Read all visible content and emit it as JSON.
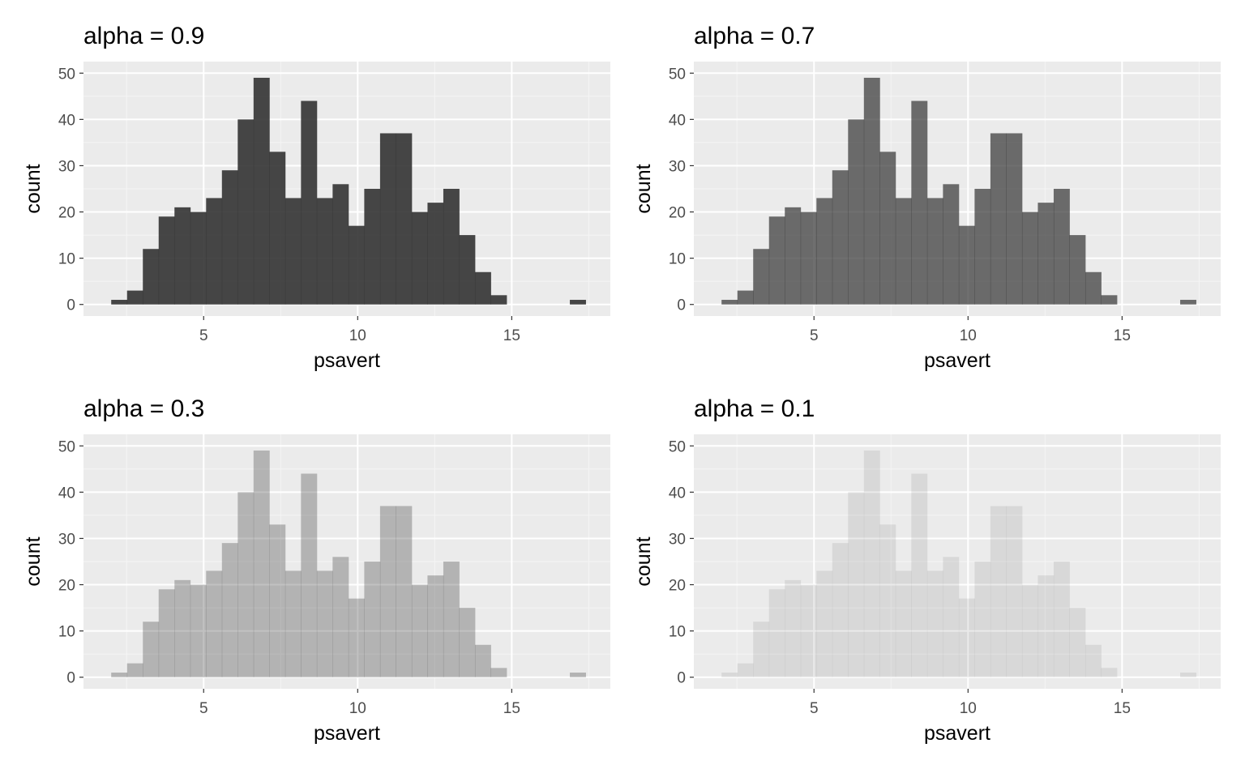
{
  "chart_data": [
    {
      "type": "bar",
      "title": "alpha = 0.9",
      "alpha": 0.9,
      "fill": "#333333",
      "xlabel": "psavert",
      "ylabel": "count",
      "xlim": [
        1.1,
        18.2
      ],
      "ylim": [
        -2.5,
        52.5
      ],
      "xticks": [
        5,
        10,
        15
      ],
      "yticks": [
        0,
        10,
        20,
        30,
        40,
        50
      ],
      "grid": true,
      "bin_start": 2.0,
      "bin_width": 0.5133,
      "counts": [
        1,
        3,
        12,
        19,
        21,
        20,
        23,
        29,
        40,
        49,
        33,
        23,
        44,
        23,
        26,
        17,
        25,
        37,
        37,
        20,
        22,
        25,
        15,
        7,
        2,
        0,
        0,
        0,
        0,
        1
      ]
    },
    {
      "type": "bar",
      "title": "alpha = 0.7",
      "alpha": 0.7,
      "fill": "#333333",
      "xlabel": "psavert",
      "ylabel": "count",
      "xlim": [
        1.1,
        18.2
      ],
      "ylim": [
        -2.5,
        52.5
      ],
      "xticks": [
        5,
        10,
        15
      ],
      "yticks": [
        0,
        10,
        20,
        30,
        40,
        50
      ],
      "grid": true,
      "bin_start": 2.0,
      "bin_width": 0.5133,
      "counts": [
        1,
        3,
        12,
        19,
        21,
        20,
        23,
        29,
        40,
        49,
        33,
        23,
        44,
        23,
        26,
        17,
        25,
        37,
        37,
        20,
        22,
        25,
        15,
        7,
        2,
        0,
        0,
        0,
        0,
        1
      ]
    },
    {
      "type": "bar",
      "title": "alpha = 0.3",
      "alpha": 0.3,
      "fill": "#333333",
      "xlabel": "psavert",
      "ylabel": "count",
      "xlim": [
        1.1,
        18.2
      ],
      "ylim": [
        -2.5,
        52.5
      ],
      "xticks": [
        5,
        10,
        15
      ],
      "yticks": [
        0,
        10,
        20,
        30,
        40,
        50
      ],
      "grid": true,
      "bin_start": 2.0,
      "bin_width": 0.5133,
      "counts": [
        1,
        3,
        12,
        19,
        21,
        20,
        23,
        29,
        40,
        49,
        33,
        23,
        44,
        23,
        26,
        17,
        25,
        37,
        37,
        20,
        22,
        25,
        15,
        7,
        2,
        0,
        0,
        0,
        0,
        1
      ]
    },
    {
      "type": "bar",
      "title": "alpha = 0.1",
      "alpha": 0.1,
      "fill": "#333333",
      "xlabel": "psavert",
      "ylabel": "count",
      "xlim": [
        1.1,
        18.2
      ],
      "ylim": [
        -2.5,
        52.5
      ],
      "xticks": [
        5,
        10,
        15
      ],
      "yticks": [
        0,
        10,
        20,
        30,
        40,
        50
      ],
      "grid": true,
      "bin_start": 2.0,
      "bin_width": 0.5133,
      "counts": [
        1,
        3,
        12,
        19,
        21,
        20,
        23,
        29,
        40,
        49,
        33,
        23,
        44,
        23,
        26,
        17,
        25,
        37,
        37,
        20,
        22,
        25,
        15,
        7,
        2,
        0,
        0,
        0,
        0,
        1
      ]
    }
  ],
  "colors": {
    "panel_background": "#ebebeb",
    "grid_major": "#ffffff",
    "grid_minor": "#f5f5f5",
    "tick_text": "#4d4d4d",
    "tick_mark": "#333333"
  }
}
